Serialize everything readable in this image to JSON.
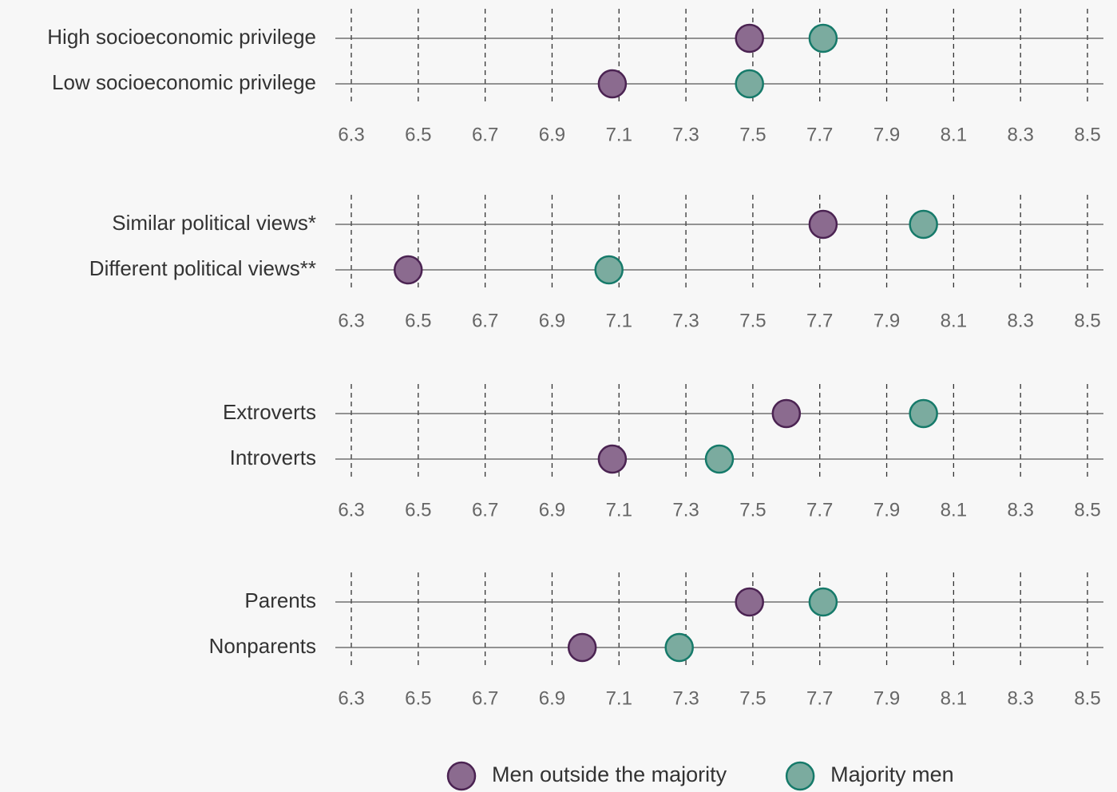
{
  "chart_data": [
    {
      "type": "dot",
      "categories": [
        "High socioeconomic privilege",
        "Low socioeconomic privilege"
      ],
      "series": [
        {
          "name": "Men outside the majority",
          "color": "#8b6b8f",
          "edgecolor": "#4b2352",
          "values": [
            7.49,
            7.08
          ]
        },
        {
          "name": "Majority men",
          "color": "#7bab9f",
          "edgecolor": "#167a6a",
          "values": [
            7.71,
            7.49
          ]
        }
      ],
      "xlim": [
        6.3,
        8.5
      ],
      "xticks": [
        6.3,
        6.5,
        6.7,
        6.9,
        7.1,
        7.3,
        7.5,
        7.7,
        7.9,
        8.1,
        8.3,
        8.5
      ],
      "grid": true,
      "legend": "bottom"
    },
    {
      "type": "dot",
      "categories": [
        "Similar political views*",
        "Different political views**"
      ],
      "series": [
        {
          "name": "Men outside the majority",
          "color": "#8b6b8f",
          "edgecolor": "#4b2352",
          "values": [
            7.71,
            6.47
          ]
        },
        {
          "name": "Majority men",
          "color": "#7bab9f",
          "edgecolor": "#167a6a",
          "values": [
            8.01,
            7.07
          ]
        }
      ],
      "xlim": [
        6.3,
        8.5
      ],
      "xticks": [
        6.3,
        6.5,
        6.7,
        6.9,
        7.1,
        7.3,
        7.5,
        7.7,
        7.9,
        8.1,
        8.3,
        8.5
      ],
      "grid": true
    },
    {
      "type": "dot",
      "categories": [
        "Extroverts",
        "Introverts"
      ],
      "series": [
        {
          "name": "Men outside the majority",
          "color": "#8b6b8f",
          "edgecolor": "#4b2352",
          "values": [
            7.6,
            7.08
          ]
        },
        {
          "name": "Majority men",
          "color": "#7bab9f",
          "edgecolor": "#167a6a",
          "values": [
            8.01,
            7.4
          ]
        }
      ],
      "xlim": [
        6.3,
        8.5
      ],
      "xticks": [
        6.3,
        6.5,
        6.7,
        6.9,
        7.1,
        7.3,
        7.5,
        7.7,
        7.9,
        8.1,
        8.3,
        8.5
      ],
      "grid": true
    },
    {
      "type": "dot",
      "categories": [
        "Parents",
        "Nonparents"
      ],
      "series": [
        {
          "name": "Men outside the majority",
          "color": "#8b6b8f",
          "edgecolor": "#4b2352",
          "values": [
            7.49,
            6.99
          ]
        },
        {
          "name": "Majority men",
          "color": "#7bab9f",
          "edgecolor": "#167a6a",
          "values": [
            7.71,
            7.28
          ]
        }
      ],
      "xlim": [
        6.3,
        8.5
      ],
      "xticks": [
        6.3,
        6.5,
        6.7,
        6.9,
        7.1,
        7.3,
        7.5,
        7.7,
        7.9,
        8.1,
        8.3,
        8.5
      ],
      "grid": true
    }
  ]
}
